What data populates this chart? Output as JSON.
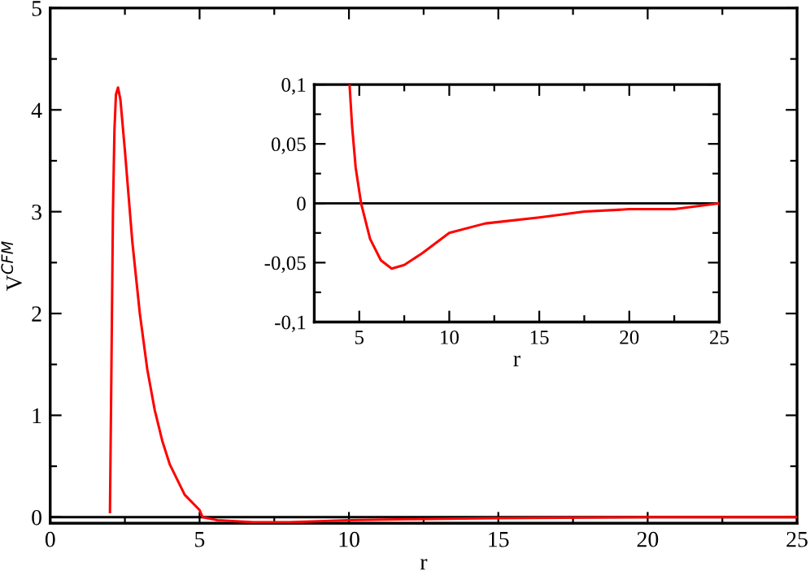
{
  "chart_data": [
    {
      "type": "line",
      "xlabel": "r",
      "ylabel": "V$^{CFM}$",
      "grid": false,
      "legend": false,
      "marker": "none",
      "line_style": "solid",
      "xlim": [
        0,
        25
      ],
      "ylim": [
        -0.06,
        5
      ],
      "xticks": [
        0,
        {
          "value": 2.5,
          "label": null
        },
        5,
        {
          "value": 7.5,
          "label": null
        },
        10,
        {
          "value": 12.5,
          "label": null
        },
        15,
        {
          "value": 17.5,
          "label": null
        },
        20,
        {
          "value": 22.5,
          "label": null
        },
        25
      ],
      "yticks": [
        0,
        {
          "value": 0.5,
          "label": null
        },
        1,
        {
          "value": 1.5,
          "label": null
        },
        2,
        {
          "value": 2.5,
          "label": null
        },
        3,
        {
          "value": 3.5,
          "label": null
        },
        4,
        {
          "value": 4.5,
          "label": null
        },
        5
      ],
      "ref_lines": [
        {
          "axis": "y",
          "value": 0,
          "color": "#000000"
        }
      ],
      "series": [
        {
          "color": "#ff0000",
          "x": [
            2.0,
            2.05,
            2.1,
            2.15,
            2.2,
            2.27,
            2.35,
            2.5,
            2.75,
            3.0,
            3.25,
            3.5,
            3.75,
            4.0,
            4.5,
            5.0,
            5.1,
            5.6,
            6.8,
            8,
            10,
            12,
            15,
            20,
            25
          ],
          "values": [
            0.05,
            1.5,
            3.0,
            3.8,
            4.15,
            4.22,
            4.1,
            3.6,
            2.7,
            2.0,
            1.45,
            1.05,
            0.75,
            0.52,
            0.22,
            0.07,
            0.0,
            -0.03,
            -0.05,
            -0.05,
            -0.03,
            -0.02,
            -0.01,
            0.0,
            0.0
          ]
        }
      ]
    },
    {
      "type": "line",
      "xlabel": "r",
      "grid": false,
      "legend": false,
      "marker": "none",
      "line_style": "solid",
      "xlim": [
        2.5,
        25
      ],
      "ylim": [
        -0.1,
        0.1
      ],
      "xticks": [
        5,
        {
          "value": 7.5,
          "label": null
        },
        10,
        {
          "value": 12.5,
          "label": null
        },
        15,
        {
          "value": 17.5,
          "label": null
        },
        20,
        {
          "value": 22.5,
          "label": null
        },
        25
      ],
      "yticks": [
        {
          "value": -0.1,
          "label": "-0,1"
        },
        {
          "value": -0.075,
          "label": null
        },
        {
          "value": -0.05,
          "label": "-0,05"
        },
        {
          "value": -0.025,
          "label": null
        },
        0,
        {
          "value": 0.025,
          "label": null
        },
        {
          "value": 0.05,
          "label": "0,05"
        },
        {
          "value": 0.075,
          "label": null
        },
        {
          "value": 0.1,
          "label": "0,1"
        }
      ],
      "ref_lines": [
        {
          "axis": "y",
          "value": 0,
          "color": "#000000"
        }
      ],
      "series": [
        {
          "color": "#ff0000",
          "x": [
            4.46,
            4.6,
            4.8,
            5.1,
            5.6,
            6.2,
            6.8,
            7.5,
            8.5,
            10,
            12,
            15,
            17.5,
            20,
            22.5,
            25
          ],
          "values": [
            0.1,
            0.065,
            0.03,
            0.0,
            -0.03,
            -0.048,
            -0.055,
            -0.052,
            -0.042,
            -0.025,
            -0.017,
            -0.012,
            -0.007,
            -0.005,
            -0.005,
            0.0
          ]
        }
      ]
    }
  ]
}
